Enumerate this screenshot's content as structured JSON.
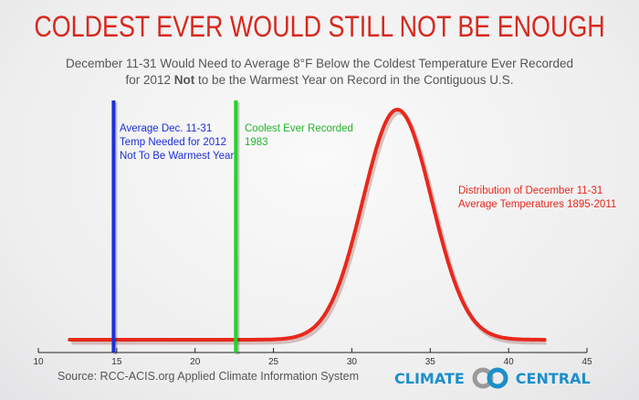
{
  "title": "COLDEST EVER WOULD STILL NOT BE ENOUGH",
  "subtitle": {
    "line1": "December 11-31 Would Need to Average 8°F Below the Coldest Temperature Ever Recorded",
    "line2_pre": "for 2012 ",
    "line2_bold": "Not",
    "line2_post": " to be the Warmest Year on Record in the Contiguous U.S."
  },
  "source": "Source: RCC-ACIS.org Applied Climate Information System",
  "logo": {
    "left": "CLIMATE",
    "right": "CENTRAL",
    "color": "#1c8fc9"
  },
  "chart_data": {
    "type": "line",
    "xlim": [
      10,
      45
    ],
    "xticks": [
      10,
      15,
      20,
      25,
      30,
      35,
      40,
      45
    ],
    "grid": false,
    "series": [
      {
        "name": "Distribution of December 11-31 Average Temperatures 1895-2011",
        "kind": "normal-curve",
        "mean": 32.9,
        "sd": 2.2,
        "x_range": [
          12,
          42.3
        ],
        "color": "#e8281c"
      }
    ],
    "vlines": [
      {
        "x": 14.8,
        "color": "#1d2fd6",
        "label": [
          "Average  Dec. 11-31",
          "Temp Needed for 2012",
          "Not To Be Warmest Year"
        ]
      },
      {
        "x": 22.6,
        "color": "#22d42a",
        "label": [
          "Coolest Ever Recorded",
          "1983"
        ]
      }
    ],
    "curve_label": [
      "Distribution of December 11-31",
      "Average Temperatures 1895-2011"
    ]
  }
}
